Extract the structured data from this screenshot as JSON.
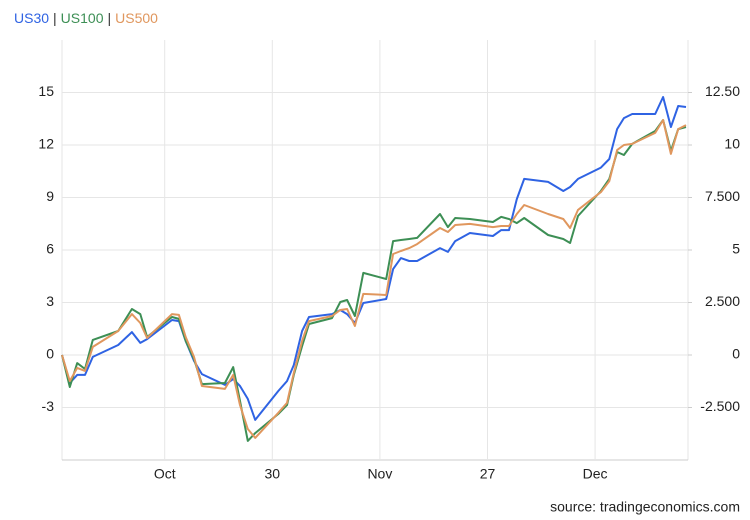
{
  "chart_data": {
    "type": "line",
    "legend_separator": "|",
    "source": "source: tradingeconomics.com",
    "x": [
      0,
      1.6,
      3.1,
      4.7,
      6.3,
      11.5,
      14.3,
      16.0,
      17.4,
      22.5,
      23.9,
      25.3,
      27.0,
      28.6,
      33.3,
      35.0,
      36.4,
      38.0,
      39.5,
      44.2,
      46.0,
      47.4,
      49.1,
      50.5,
      55.2,
      56.9,
      58.3,
      59.9,
      61.6,
      66.3,
      67.7,
      69.3,
      71.0,
      72.6,
      77.3,
      78.9,
      80.4,
      83.4,
      88.1,
      89.8,
      91.4,
      93.0,
      94.5,
      99.4,
      102.5,
      103.9,
      105.5,
      110.2,
      111.9,
      113.5,
      114.9,
      116.6,
      121.3,
      122.9,
      124.5,
      126.0,
      127.6
    ],
    "series": [
      {
        "name": "US30",
        "color": "#2f63e3",
        "values": [
          0,
          -1.6,
          -1.14,
          -1.14,
          -0.11,
          0.57,
          1.31,
          0.69,
          0.91,
          2.0,
          1.94,
          0.8,
          -0.34,
          -1.09,
          -1.71,
          -1.37,
          -1.77,
          -2.51,
          -3.71,
          -2.06,
          -1.49,
          -0.57,
          1.37,
          2.17,
          2.34,
          2.57,
          2.34,
          1.83,
          2.97,
          3.2,
          4.91,
          5.54,
          5.37,
          5.37,
          6.11,
          5.89,
          6.51,
          6.97,
          6.8,
          7.14,
          7.14,
          8.91,
          10.06,
          9.89,
          9.37,
          9.6,
          10.06,
          10.71,
          11.2,
          12.91,
          13.54,
          13.77,
          13.77,
          14.74,
          13.03,
          14.23,
          14.17
        ]
      },
      {
        "name": "US100",
        "color": "#3d8f55",
        "values": [
          0,
          -1.83,
          -0.46,
          -0.8,
          0.86,
          1.37,
          2.63,
          2.34,
          1.03,
          2.17,
          2.06,
          0.8,
          -0.23,
          -1.66,
          -1.6,
          -0.69,
          -2.63,
          -4.91,
          -4.46,
          -3.37,
          -2.86,
          -1.14,
          0.51,
          1.77,
          2.11,
          3.03,
          3.14,
          2.23,
          4.69,
          4.34,
          6.51,
          6.57,
          6.63,
          6.69,
          8.06,
          7.31,
          7.83,
          7.77,
          7.6,
          7.89,
          7.77,
          7.54,
          7.83,
          6.86,
          6.63,
          6.4,
          7.94,
          9.37,
          10.06,
          11.6,
          11.43,
          12.06,
          12.8,
          13.43,
          11.66,
          12.91,
          13.03
        ]
      },
      {
        "name": "US500",
        "color": "#e0975e",
        "values": [
          0,
          -1.49,
          -0.74,
          -0.91,
          0.46,
          1.37,
          2.34,
          1.83,
          0.97,
          2.34,
          2.29,
          1.03,
          -0.11,
          -1.77,
          -1.94,
          -1.14,
          -2.86,
          -4.23,
          -4.74,
          -3.31,
          -2.74,
          -1.03,
          0.8,
          1.94,
          2.23,
          2.57,
          2.63,
          1.66,
          3.49,
          3.43,
          5.77,
          5.94,
          6.11,
          6.34,
          7.26,
          7.03,
          7.43,
          7.49,
          7.31,
          7.37,
          7.37,
          8.06,
          8.57,
          8.06,
          7.77,
          7.26,
          8.29,
          9.31,
          9.94,
          11.71,
          12.0,
          12.06,
          12.69,
          13.43,
          11.49,
          12.91,
          13.14
        ]
      }
    ],
    "xlim": [
      0,
      128
    ],
    "xticks": [
      {
        "value": 21,
        "label": "Oct"
      },
      {
        "value": 43,
        "label": "30"
      },
      {
        "value": 65,
        "label": "Nov"
      },
      {
        "value": 87,
        "label": "27"
      },
      {
        "value": 109,
        "label": "Dec"
      }
    ],
    "ylim": [
      -6,
      18
    ],
    "yticks": [
      -3,
      0,
      3,
      6,
      9,
      12,
      15
    ],
    "y2lim": [
      -5,
      15
    ],
    "y2ticks": [
      {
        "value": -2.5,
        "label": "-2.500"
      },
      0,
      {
        "value": 2.5,
        "label": "2.500"
      },
      5,
      {
        "value": 7.5,
        "label": "7.500"
      },
      10,
      {
        "value": 12.5,
        "label": "12.50"
      }
    ],
    "grid": true
  }
}
